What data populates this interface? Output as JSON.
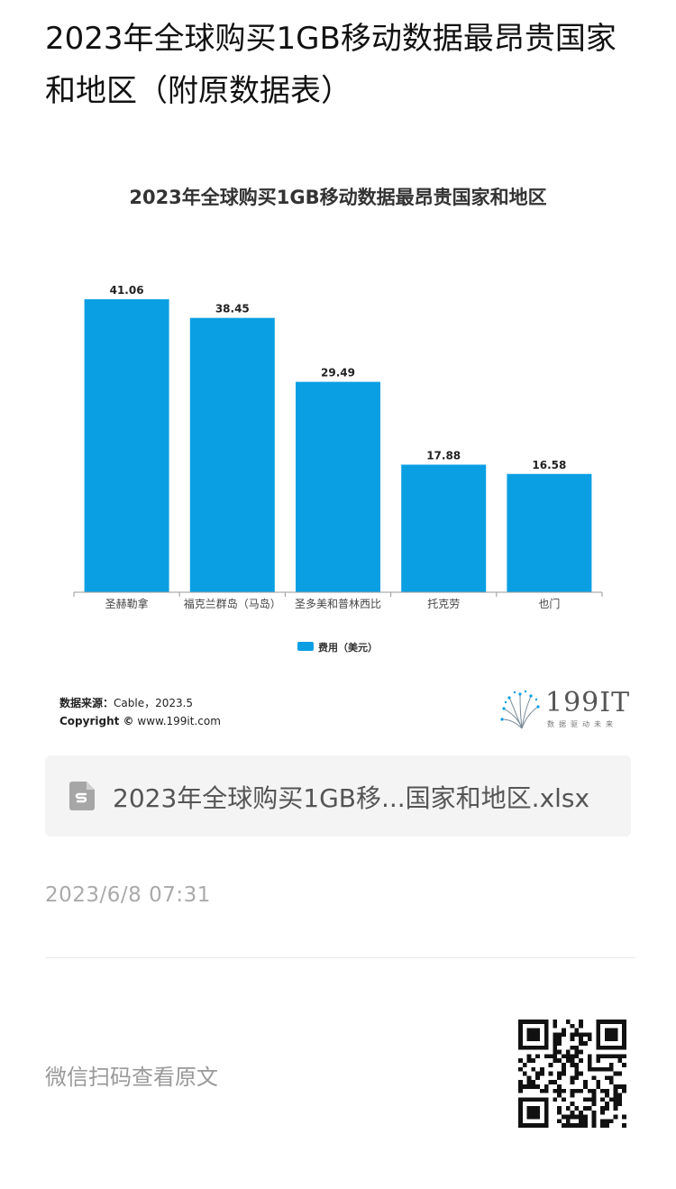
{
  "article": {
    "title": "2023年全球购买1GB移动数据最昂贵国家和地区（附原数据表）"
  },
  "chart_data": {
    "type": "bar",
    "title": "2023年全球购买1GB移动数据最昂贵国家和地区",
    "categories": [
      "圣赫勒拿",
      "福克兰群岛（马岛）",
      "圣多美和普林西比",
      "托克劳",
      "也门"
    ],
    "series": [
      {
        "name": "费用（美元）",
        "values": [
          41.06,
          38.45,
          29.49,
          17.88,
          16.58
        ],
        "color": "#0a9fe3"
      }
    ],
    "value_labels": [
      "41.06",
      "38.45",
      "29.49",
      "17.88",
      "16.58"
    ],
    "xlabel": "",
    "ylabel": "",
    "ylim": [
      0,
      41.06
    ],
    "grid": false,
    "legend_position": "bottom-center"
  },
  "source": {
    "label": "数据来源：",
    "value": "Cable，2023.5",
    "copyright_label": "Copyright ©",
    "copyright_value": "www.199it.com"
  },
  "logo": {
    "name": "199IT",
    "tagline": "数据驱动未来",
    "icon": "dandelion-logo-icon"
  },
  "attachment": {
    "file_name": "2023年全球购买1GB移...国家和地区.xlsx",
    "icon": "spreadsheet-file-icon"
  },
  "post_time": "2023/6/8 07:31",
  "footer": {
    "qr_hint": "微信扫码查看原文",
    "qr_icon": "qr-code-icon"
  }
}
